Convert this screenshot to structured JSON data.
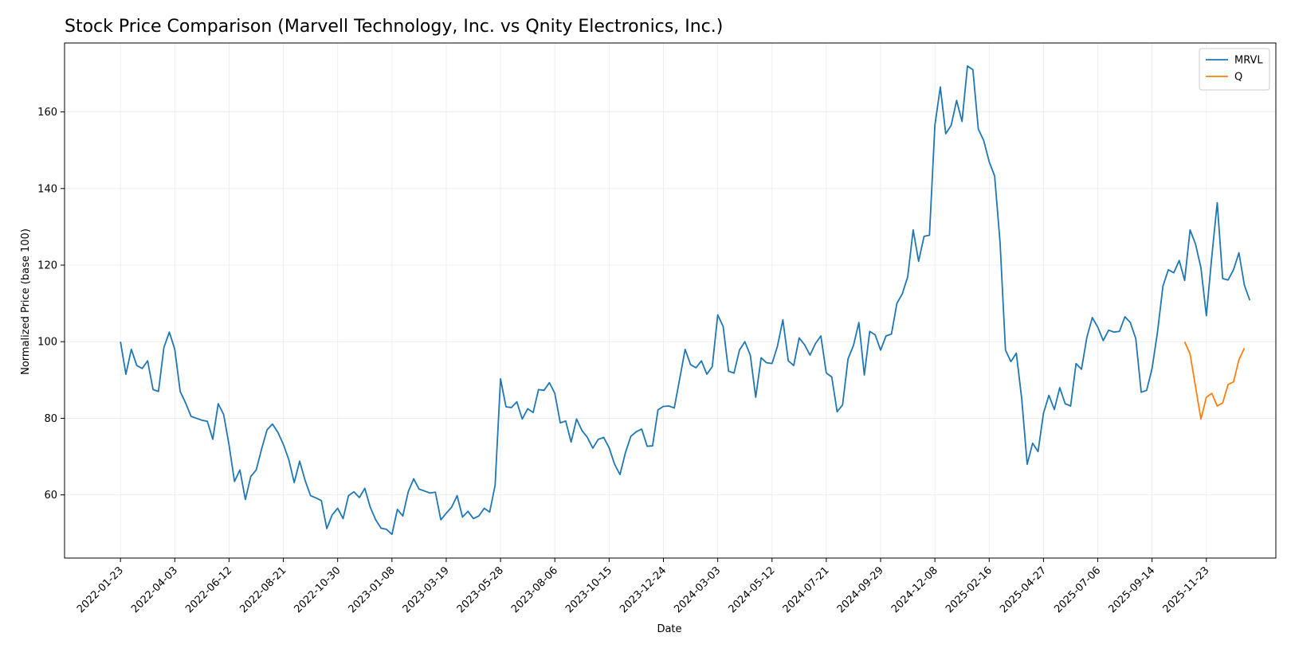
{
  "chart_data": {
    "type": "line",
    "title": "Stock Price Comparison (Marvell Technology, Inc. vs Qnity Electronics, Inc.)",
    "xlabel": "Date",
    "ylabel": "Normalized Price (base 100)",
    "ylim": [
      43.5,
      178
    ],
    "yticks": [
      60,
      80,
      100,
      120,
      140,
      160
    ],
    "xlim_index": [
      -10.3,
      212.8
    ],
    "xticks": [
      {
        "label": "2022-01-23",
        "index": 0
      },
      {
        "label": "2022-04-03",
        "index": 10
      },
      {
        "label": "2022-06-12",
        "index": 20
      },
      {
        "label": "2022-08-21",
        "index": 30
      },
      {
        "label": "2022-10-30",
        "index": 40
      },
      {
        "label": "2023-01-08",
        "index": 50
      },
      {
        "label": "2023-03-19",
        "index": 60
      },
      {
        "label": "2023-05-28",
        "index": 70
      },
      {
        "label": "2023-08-06",
        "index": 80
      },
      {
        "label": "2023-10-15",
        "index": 90
      },
      {
        "label": "2023-12-24",
        "index": 100
      },
      {
        "label": "2024-03-03",
        "index": 110
      },
      {
        "label": "2024-05-12",
        "index": 120
      },
      {
        "label": "2024-07-21",
        "index": 130
      },
      {
        "label": "2024-09-29",
        "index": 140
      },
      {
        "label": "2024-12-08",
        "index": 150
      },
      {
        "label": "2025-02-16",
        "index": 160
      },
      {
        "label": "2025-04-27",
        "index": 170
      },
      {
        "label": "2025-07-06",
        "index": 180
      },
      {
        "label": "2025-09-14",
        "index": 190
      },
      {
        "label": "2025-11-23",
        "index": 200
      }
    ],
    "grid": true,
    "legend_position": "top-right",
    "series": [
      {
        "name": "MRVL",
        "color": "#1f77b4",
        "start_index": 0,
        "values": [
          100,
          91.5,
          98,
          93.8,
          93,
          95,
          87.5,
          87,
          98.5,
          102.5,
          98,
          87,
          84,
          80.5,
          80,
          79.5,
          79.2,
          74.5,
          83.8,
          81,
          73,
          63.5,
          66.5,
          58.8,
          64.8,
          66.5,
          72,
          77,
          78.5,
          76.3,
          73.2,
          69.2,
          63.2,
          68.8,
          63.8,
          59.8,
          59.2,
          58.5,
          51.2,
          54.8,
          56.5,
          53.8,
          59.8,
          60.8,
          59.3,
          61.7,
          56.8,
          53.5,
          51.3,
          51,
          49.7,
          56.2,
          54.5,
          60.8,
          64.2,
          61.5,
          61,
          60.5,
          60.7,
          53.5,
          55.2,
          56.8,
          59.8,
          54.2,
          55.7,
          53.8,
          54.5,
          56.5,
          55.5,
          62.5,
          90.3,
          83,
          82.8,
          84.3,
          79.8,
          82.5,
          81.5,
          87.5,
          87.3,
          89.3,
          86.5,
          78.8,
          79.3,
          73.8,
          79.8,
          76.8,
          75,
          72.2,
          74.5,
          75,
          72.3,
          68,
          65.3,
          71,
          75.3,
          76.5,
          77.2,
          72.7,
          72.8,
          82.2,
          83.1,
          83.2,
          82.7,
          90.3,
          98,
          94,
          93.2,
          95,
          91.5,
          93.5,
          107,
          104,
          92.3,
          91.8,
          97.8,
          100,
          96.5,
          85.5,
          95.8,
          94.5,
          94.3,
          98.8,
          105.7,
          95,
          93.8,
          101,
          99.2,
          96.5,
          99.5,
          101.5,
          91.8,
          90.8,
          81.7,
          83.5,
          95.5,
          99,
          105,
          91.3,
          102.7,
          101.8,
          97.8,
          101.5,
          102,
          110,
          112.5,
          117,
          129.2,
          121,
          127.5,
          127.8,
          156.5,
          166.5,
          154.3,
          156.5,
          163,
          157.5,
          172,
          171,
          155.5,
          152.5,
          147,
          143.3,
          126,
          97.8,
          94.8,
          97,
          85,
          68,
          73.5,
          71.3,
          81.3,
          86,
          82.3,
          88,
          83.8,
          83.2,
          94.3,
          92.8,
          101.2,
          106.3,
          103.8,
          100.3,
          103,
          102.5,
          102.7,
          106.5,
          105,
          100.8,
          86.8,
          87.3,
          93,
          102.5,
          114.5,
          118.8,
          118,
          121.2,
          116,
          129.2,
          125.5,
          119.3,
          106.8,
          122.2,
          136.3,
          116.5,
          116.1,
          118.8,
          123.2,
          114.8,
          110.8
        ]
      },
      {
        "name": "Q",
        "color": "#ff7f0e",
        "start_index": 196,
        "values": [
          100,
          96.8,
          88.3,
          79.8,
          85.5,
          86.5,
          83.2,
          84,
          88.8,
          89.5,
          95.3,
          98.3
        ]
      }
    ]
  }
}
